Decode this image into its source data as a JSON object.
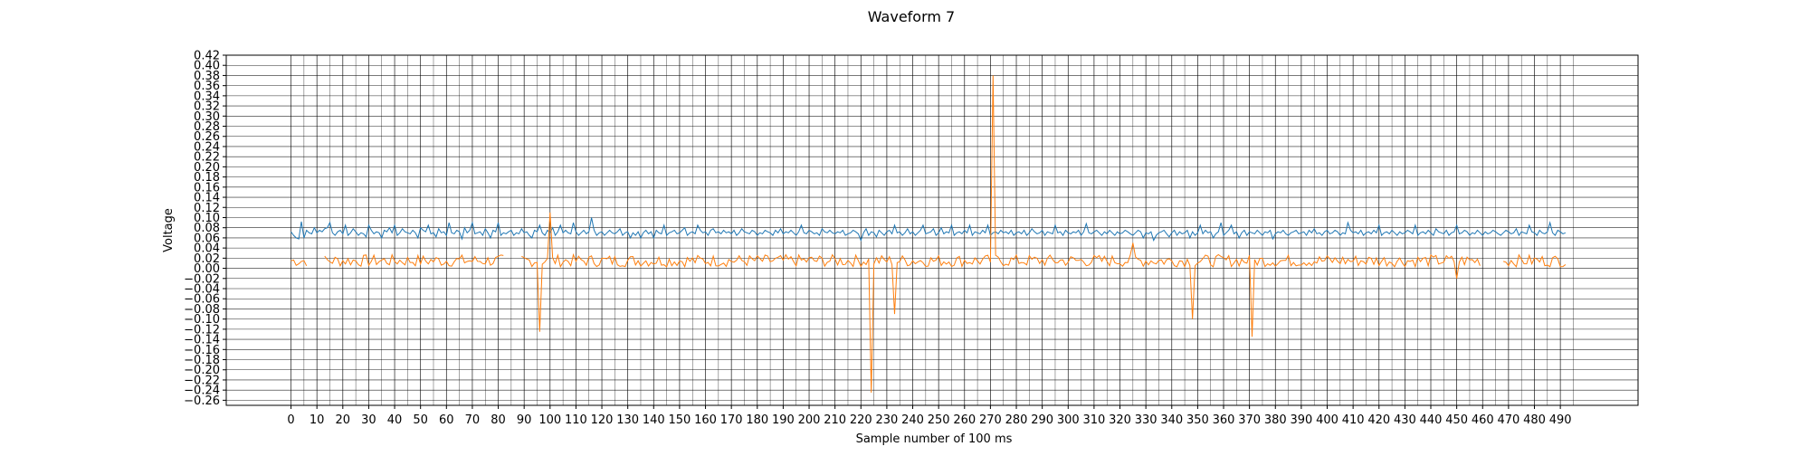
{
  "chart_data": {
    "type": "line",
    "title": "Waveform 7",
    "xlabel": "Sample number of 100 ms",
    "ylabel": "Voltage",
    "xlim": [
      -25,
      520
    ],
    "ylim": [
      -0.27,
      0.42
    ],
    "x_ticks": [
      0,
      10,
      20,
      30,
      40,
      50,
      60,
      70,
      80,
      90,
      100,
      110,
      120,
      130,
      140,
      150,
      160,
      170,
      180,
      190,
      200,
      210,
      220,
      230,
      240,
      250,
      260,
      270,
      280,
      290,
      300,
      310,
      320,
      330,
      340,
      350,
      360,
      370,
      380,
      390,
      400,
      410,
      420,
      430,
      440,
      450,
      460,
      470,
      480,
      490
    ],
    "y_ticks": [
      0.42,
      0.4,
      0.38,
      0.36,
      0.34,
      0.32,
      0.3,
      0.28,
      0.26,
      0.24,
      0.22,
      0.2,
      0.18,
      0.16,
      0.14,
      0.12,
      0.1,
      0.08,
      0.06,
      0.04,
      0.02,
      0.0,
      -0.02,
      -0.04,
      -0.06,
      -0.08,
      -0.1,
      -0.12,
      -0.14,
      -0.16,
      -0.18,
      -0.2,
      -0.22,
      -0.24,
      -0.26
    ],
    "grid": true,
    "minor_x_gridlines": [
      5,
      15,
      25,
      35,
      45,
      55,
      65,
      75,
      85,
      95,
      105,
      115,
      125,
      135,
      145,
      155,
      165,
      175,
      185,
      195,
      205,
      215,
      225,
      235,
      245,
      255,
      265,
      275,
      285,
      295,
      305,
      315,
      325,
      335,
      345,
      355,
      365,
      375,
      385,
      395,
      405,
      415,
      425,
      435,
      445,
      455,
      465,
      475,
      485,
      495
    ],
    "series": [
      {
        "color": "#1f77b4",
        "values": [
          0.072,
          0.065,
          0.06,
          0.058,
          0.092,
          0.06,
          0.075,
          0.07,
          0.068,
          0.08,
          0.07,
          0.075,
          0.072,
          0.078,
          0.08,
          0.09,
          0.07,
          0.065,
          0.072,
          0.075,
          0.068,
          0.085,
          0.065,
          0.07,
          0.078,
          0.072,
          0.065,
          0.07,
          0.068,
          0.062,
          0.085,
          0.075,
          0.068,
          0.072,
          0.07,
          0.06,
          0.075,
          0.072,
          0.08,
          0.07,
          0.085,
          0.065,
          0.07,
          0.078,
          0.072,
          0.07,
          0.068,
          0.075,
          0.07,
          0.06,
          0.08,
          0.075,
          0.072,
          0.085,
          0.068,
          0.07,
          0.062,
          0.078,
          0.07,
          0.072,
          0.065,
          0.09,
          0.07,
          0.068,
          0.075,
          0.072,
          0.058,
          0.08,
          0.07,
          0.075,
          0.09,
          0.068,
          0.07,
          0.072,
          0.065,
          0.078,
          0.07,
          0.06,
          0.075,
          0.072,
          0.09,
          0.065,
          0.07,
          0.068,
          0.072,
          0.075,
          0.065,
          0.07,
          0.068,
          0.078,
          0.07,
          0.072,
          0.065,
          0.06,
          0.075,
          0.072,
          0.085,
          0.07,
          0.065,
          0.075,
          0.07,
          0.08,
          0.065,
          0.072,
          0.085,
          0.07,
          0.075,
          0.07,
          0.068,
          0.09,
          0.072,
          0.065,
          0.07,
          0.075,
          0.068,
          0.072,
          0.1,
          0.075,
          0.065,
          0.07,
          0.072,
          0.065,
          0.07,
          0.075,
          0.07,
          0.068,
          0.072,
          0.078,
          0.065,
          0.07,
          0.072,
          0.06,
          0.07,
          0.065,
          0.072,
          0.06,
          0.07,
          0.075,
          0.068,
          0.072,
          0.06,
          0.075,
          0.07,
          0.068,
          0.085,
          0.065,
          0.07,
          0.072,
          0.075,
          0.068,
          0.07,
          0.075,
          0.08,
          0.065,
          0.07,
          0.072,
          0.068,
          0.085,
          0.075,
          0.07,
          0.072,
          0.065,
          0.075,
          0.078,
          0.07,
          0.072,
          0.068,
          0.075,
          0.07,
          0.072,
          0.068,
          0.075,
          0.065,
          0.07,
          0.078,
          0.072,
          0.07,
          0.068,
          0.075,
          0.072,
          0.065,
          0.07,
          0.068,
          0.075,
          0.072,
          0.07,
          0.065,
          0.075,
          0.07,
          0.078,
          0.068,
          0.072,
          0.07,
          0.075,
          0.07,
          0.065,
          0.072,
          0.085,
          0.07,
          0.068,
          0.075,
          0.072,
          0.068,
          0.07,
          0.065,
          0.078,
          0.072,
          0.07,
          0.075,
          0.07,
          0.068,
          0.072,
          0.07,
          0.075,
          0.065,
          0.068,
          0.07,
          0.075,
          0.072,
          0.068,
          0.055,
          0.07,
          0.078,
          0.065,
          0.072,
          0.07,
          0.062,
          0.075,
          0.07,
          0.065,
          0.072,
          0.075,
          0.068,
          0.085,
          0.07,
          0.072,
          0.065,
          0.07,
          0.078,
          0.068,
          0.072,
          0.065,
          0.07,
          0.075,
          0.085,
          0.068,
          0.07,
          0.072,
          0.078,
          0.065,
          0.07,
          0.08,
          0.068,
          0.072,
          0.07,
          0.085,
          0.065,
          0.07,
          0.072,
          0.068,
          0.075,
          0.07,
          0.085,
          0.065,
          0.072,
          0.07,
          0.068,
          0.075,
          0.07,
          0.085,
          0.065,
          0.07,
          0.072,
          0.068,
          0.075,
          0.07,
          0.072,
          0.068,
          0.075,
          0.065,
          0.07,
          0.072,
          0.068,
          0.075,
          0.065,
          0.07,
          0.078,
          0.072,
          0.068,
          0.07,
          0.075,
          0.065,
          0.072,
          0.07,
          0.068,
          0.085,
          0.07,
          0.072,
          0.065,
          0.075,
          0.07,
          0.068,
          0.072,
          0.07,
          0.075,
          0.065,
          0.072,
          0.088,
          0.07,
          0.068,
          0.072,
          0.075,
          0.07,
          0.065,
          0.072,
          0.068,
          0.075,
          0.07,
          0.065,
          0.072,
          0.068,
          0.07,
          0.075,
          0.072,
          0.068,
          0.065,
          0.07,
          0.075,
          0.072,
          0.06,
          0.07,
          0.068,
          0.072,
          0.055,
          0.065,
          0.07,
          0.072,
          0.075,
          0.068,
          0.062,
          0.07,
          0.075,
          0.065,
          0.072,
          0.068,
          0.07,
          0.075,
          0.06,
          0.072,
          0.065,
          0.07,
          0.085,
          0.068,
          0.075,
          0.07,
          0.072,
          0.06,
          0.068,
          0.072,
          0.09,
          0.065,
          0.07,
          0.075,
          0.085,
          0.068,
          0.072,
          0.06,
          0.07,
          0.075,
          0.065,
          0.072,
          0.07,
          0.068,
          0.075,
          0.07,
          0.065,
          0.072,
          0.07,
          0.075,
          0.058,
          0.068,
          0.072,
          0.07,
          0.075,
          0.068,
          0.065,
          0.07,
          0.072,
          0.075,
          0.068,
          0.07,
          0.072,
          0.065,
          0.075,
          0.07,
          0.078,
          0.068,
          0.07,
          0.065,
          0.072,
          0.075,
          0.068,
          0.07,
          0.075,
          0.072,
          0.065,
          0.07,
          0.068,
          0.09,
          0.075,
          0.07,
          0.072,
          0.068,
          0.075,
          0.065,
          0.07,
          0.072,
          0.068,
          0.075,
          0.07,
          0.085,
          0.065,
          0.07,
          0.072,
          0.068,
          0.075,
          0.07,
          0.065,
          0.072,
          0.068,
          0.07,
          0.075,
          0.072,
          0.068,
          0.085,
          0.065,
          0.07,
          0.072,
          0.068,
          0.075,
          0.07,
          0.065,
          0.078,
          0.072,
          0.07,
          0.068,
          0.075,
          0.065,
          0.07,
          0.072,
          0.085,
          0.068,
          0.07,
          0.075,
          0.072,
          0.065,
          0.07,
          0.068,
          0.075,
          0.07,
          0.065,
          0.072,
          0.068,
          0.07,
          0.075,
          0.072,
          0.068,
          0.065,
          0.07,
          0.075,
          0.072,
          0.068,
          0.07,
          0.078,
          0.065,
          0.072,
          0.07,
          0.068,
          0.085,
          0.072,
          0.07,
          0.065,
          0.075,
          0.07,
          0.068,
          0.072,
          0.09,
          0.07,
          0.065,
          0.075,
          0.072,
          0.068,
          0.07
        ]
      },
      {
        "color": "#ff7f0e",
        "spikes": [
          [
            96,
            -0.125
          ],
          [
            100,
            0.11
          ],
          [
            224,
            -0.245
          ],
          [
            233,
            -0.09
          ],
          [
            271,
            0.38
          ],
          [
            325,
            0.05
          ],
          [
            348,
            -0.1
          ],
          [
            371,
            -0.135
          ],
          [
            450,
            -0.02
          ]
        ],
        "gaps": [
          [
            7,
            12
          ],
          [
            83,
            88
          ],
          [
            460,
            467
          ]
        ],
        "baseline": 0.015,
        "jitter": 0.012
      }
    ]
  }
}
